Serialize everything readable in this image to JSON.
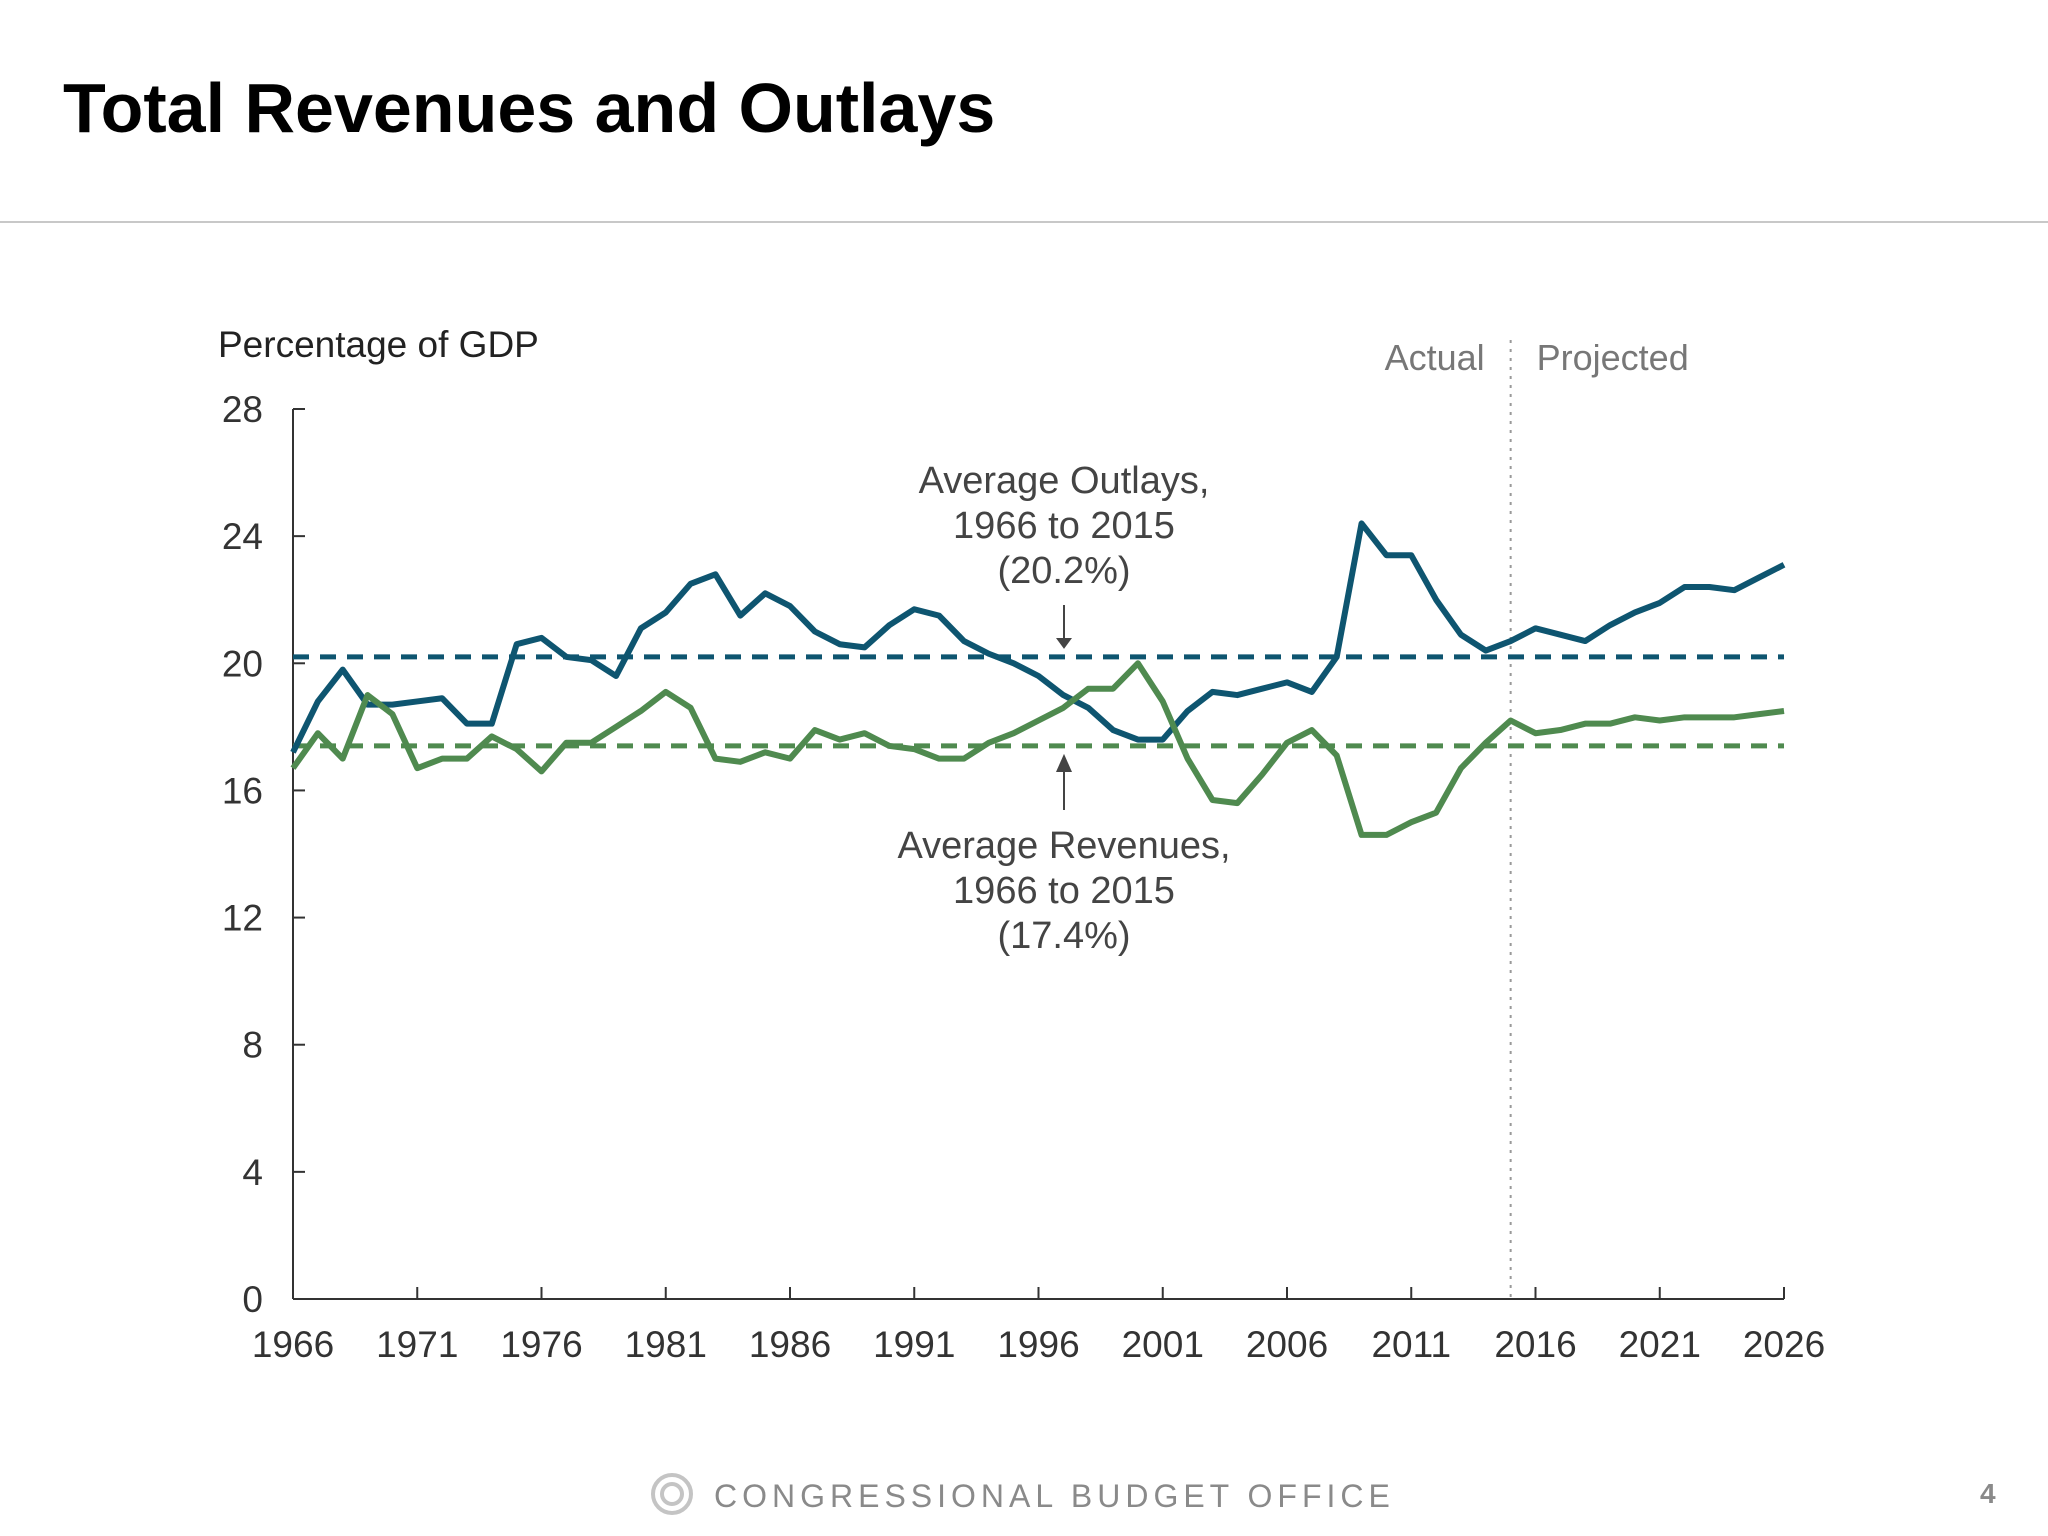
{
  "title": "Total Revenues and Outlays",
  "footer": "CONGRESSIONAL BUDGET OFFICE",
  "page_number": "4",
  "colors": {
    "outlays": "#0e5570",
    "revenues": "#4f8a4f",
    "annotation": "#444444",
    "axis": "#333333"
  },
  "chart_data": {
    "type": "line",
    "ylabel": "Percentage of GDP",
    "ylim": [
      0,
      28
    ],
    "yticks": [
      0,
      4,
      8,
      12,
      16,
      20,
      24,
      28
    ],
    "xlim": [
      1966,
      2026
    ],
    "xticks": [
      1966,
      1971,
      1976,
      1981,
      1986,
      1991,
      1996,
      2001,
      2006,
      2011,
      2016,
      2021,
      2026
    ],
    "actual_projected_divider": 2015,
    "region_labels": {
      "actual": "Actual",
      "projected": "Projected"
    },
    "x_start": 1966,
    "series": [
      {
        "name": "Outlays",
        "values": [
          17.2,
          18.8,
          19.8,
          18.7,
          18.7,
          18.8,
          18.9,
          18.1,
          18.1,
          20.6,
          20.8,
          20.2,
          20.1,
          19.6,
          21.1,
          21.6,
          22.5,
          22.8,
          21.5,
          22.2,
          21.8,
          21.0,
          20.6,
          20.5,
          21.2,
          21.7,
          21.5,
          20.7,
          20.3,
          20.0,
          19.6,
          19.0,
          18.6,
          17.9,
          17.6,
          17.6,
          18.5,
          19.1,
          19.0,
          19.2,
          19.4,
          19.1,
          20.2,
          24.4,
          23.4,
          23.4,
          22.0,
          20.9,
          20.4,
          20.7,
          21.1,
          20.9,
          20.7,
          21.2,
          21.6,
          21.9,
          22.4,
          22.4,
          22.3,
          22.7,
          23.1
        ]
      },
      {
        "name": "Revenues",
        "values": [
          16.7,
          17.8,
          17.0,
          19.0,
          18.4,
          16.7,
          17.0,
          17.0,
          17.7,
          17.3,
          16.6,
          17.5,
          17.5,
          18.0,
          18.5,
          19.1,
          18.6,
          17.0,
          16.9,
          17.2,
          17.0,
          17.9,
          17.6,
          17.8,
          17.4,
          17.3,
          17.0,
          17.0,
          17.5,
          17.8,
          18.2,
          18.6,
          19.2,
          19.2,
          20.0,
          18.8,
          17.0,
          15.7,
          15.6,
          16.5,
          17.5,
          17.9,
          17.1,
          14.6,
          14.6,
          15.0,
          15.3,
          16.7,
          17.5,
          18.2,
          17.8,
          17.9,
          18.1,
          18.1,
          18.3,
          18.2,
          18.3,
          18.3,
          18.3,
          18.4,
          18.5
        ]
      }
    ],
    "averages": [
      {
        "series": "Outlays",
        "value": 20.2,
        "label_lines": [
          "Average Outlays,",
          "1966 to 2015",
          "(20.2%)"
        ]
      },
      {
        "series": "Revenues",
        "value": 17.4,
        "label_lines": [
          "Average Revenues,",
          "1966 to 2015",
          "(17.4%)"
        ]
      }
    ]
  }
}
